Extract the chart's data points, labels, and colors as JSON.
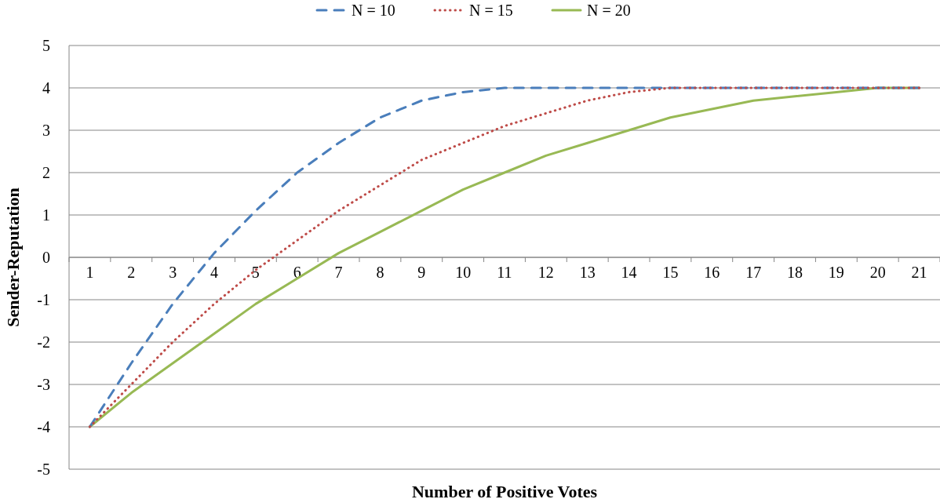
{
  "chart_data": {
    "type": "line",
    "xlabel": "Number of Positive Votes",
    "ylabel": "Sender-Reputation",
    "categories": [
      "1",
      "2",
      "3",
      "4",
      "5",
      "6",
      "7",
      "8",
      "9",
      "10",
      "11",
      "12",
      "13",
      "14",
      "15",
      "16",
      "17",
      "18",
      "19",
      "20",
      "21"
    ],
    "ylim": [
      -5,
      5
    ],
    "yticks": [
      -5,
      -4,
      -3,
      -2,
      -1,
      0,
      1,
      2,
      3,
      4,
      5
    ],
    "grid": "y",
    "legend": "top",
    "marker": "none",
    "series": [
      {
        "name": "N = 10",
        "color": "#4a7ebb",
        "line_style": "dashed",
        "values": [
          -4,
          -2.5,
          -1.1,
          0.1,
          1.1,
          2,
          2.7,
          3.3,
          3.7,
          3.9,
          4,
          4,
          4,
          4,
          4,
          4,
          4,
          4,
          4,
          4,
          4
        ]
      },
      {
        "name": "N = 15",
        "color": "#be4b48",
        "line_style": "dotted",
        "values": [
          -4,
          -3,
          -2,
          -1.1,
          -0.3,
          0.4,
          1.1,
          1.7,
          2.3,
          2.7,
          3.1,
          3.4,
          3.7,
          3.9,
          4,
          4,
          4,
          4,
          4,
          4,
          4
        ]
      },
      {
        "name": "N = 20",
        "color": "#98b954",
        "line_style": "solid",
        "values": [
          -4,
          -3.2,
          -2.5,
          -1.8,
          -1.1,
          -0.5,
          0.1,
          0.6,
          1.1,
          1.6,
          2,
          2.4,
          2.7,
          3,
          3.3,
          3.5,
          3.7,
          3.8,
          3.9,
          4,
          4
        ]
      }
    ]
  }
}
